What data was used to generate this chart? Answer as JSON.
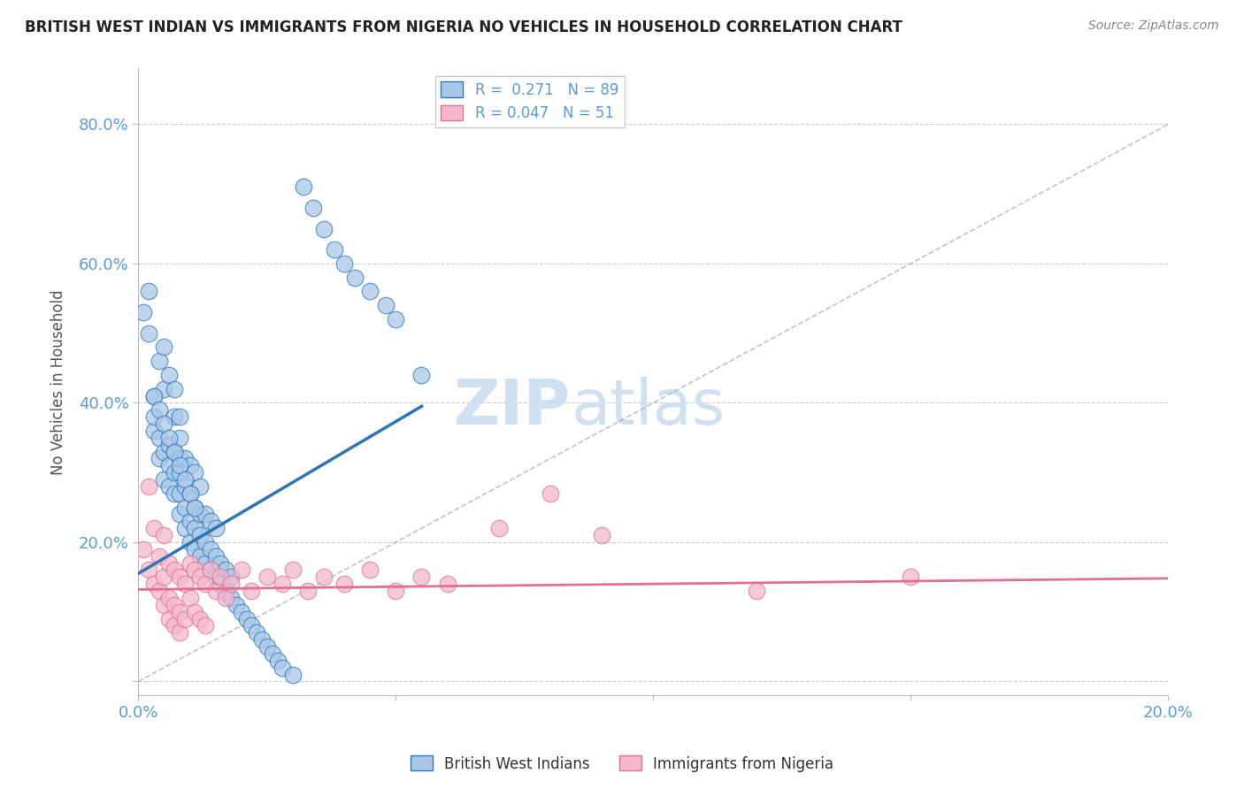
{
  "title": "BRITISH WEST INDIAN VS IMMIGRANTS FROM NIGERIA NO VEHICLES IN HOUSEHOLD CORRELATION CHART",
  "source_text": "Source: ZipAtlas.com",
  "ylabel": "No Vehicles in Household",
  "xlim": [
    0.0,
    0.2
  ],
  "ylim": [
    -0.02,
    0.88
  ],
  "xticks": [
    0.0,
    0.05,
    0.1,
    0.15,
    0.2
  ],
  "xticklabels": [
    "0.0%",
    "",
    "",
    "",
    "20.0%"
  ],
  "yticks": [
    0.0,
    0.2,
    0.4,
    0.6,
    0.8
  ],
  "yticklabels": [
    "",
    "20.0%",
    "40.0%",
    "60.0%",
    "80.0%"
  ],
  "grid_color": "#cccccc",
  "background_color": "#ffffff",
  "axis_color": "#bbbbbb",
  "tick_color": "#5b9bd5",
  "legend_R1": "R =  0.271",
  "legend_N1": "N = 89",
  "legend_R2": "R = 0.047",
  "legend_N2": "N = 51",
  "legend_label1": "British West Indians",
  "legend_label2": "Immigrants from Nigeria",
  "color_blue": "#a8c8e8",
  "color_pink": "#f4b8cc",
  "trend_color_blue": "#2e75b6",
  "trend_color_pink": "#e07090",
  "diag_color": "#aaaaaa",
  "watermark_zip": "ZIP",
  "watermark_atlas": "atlas",
  "watermark_color": "#cfe0f0",
  "blue_scatter_x": [
    0.001,
    0.002,
    0.002,
    0.003,
    0.003,
    0.003,
    0.004,
    0.004,
    0.004,
    0.005,
    0.005,
    0.005,
    0.005,
    0.006,
    0.006,
    0.006,
    0.006,
    0.007,
    0.007,
    0.007,
    0.007,
    0.007,
    0.008,
    0.008,
    0.008,
    0.008,
    0.008,
    0.008,
    0.009,
    0.009,
    0.009,
    0.009,
    0.01,
    0.01,
    0.01,
    0.01,
    0.011,
    0.011,
    0.011,
    0.011,
    0.012,
    0.012,
    0.012,
    0.012,
    0.013,
    0.013,
    0.013,
    0.014,
    0.014,
    0.014,
    0.015,
    0.015,
    0.015,
    0.016,
    0.016,
    0.017,
    0.017,
    0.018,
    0.018,
    0.019,
    0.02,
    0.021,
    0.022,
    0.023,
    0.024,
    0.025,
    0.026,
    0.027,
    0.028,
    0.03,
    0.032,
    0.034,
    0.036,
    0.038,
    0.04,
    0.042,
    0.045,
    0.048,
    0.05,
    0.055,
    0.003,
    0.004,
    0.005,
    0.006,
    0.007,
    0.008,
    0.009,
    0.01,
    0.011
  ],
  "blue_scatter_y": [
    0.53,
    0.5,
    0.56,
    0.36,
    0.38,
    0.41,
    0.32,
    0.35,
    0.46,
    0.29,
    0.33,
    0.42,
    0.48,
    0.28,
    0.31,
    0.34,
    0.44,
    0.27,
    0.3,
    0.33,
    0.38,
    0.42,
    0.24,
    0.27,
    0.3,
    0.32,
    0.35,
    0.38,
    0.22,
    0.25,
    0.28,
    0.32,
    0.2,
    0.23,
    0.27,
    0.31,
    0.19,
    0.22,
    0.25,
    0.3,
    0.18,
    0.21,
    0.24,
    0.28,
    0.17,
    0.2,
    0.24,
    0.16,
    0.19,
    0.23,
    0.15,
    0.18,
    0.22,
    0.14,
    0.17,
    0.13,
    0.16,
    0.12,
    0.15,
    0.11,
    0.1,
    0.09,
    0.08,
    0.07,
    0.06,
    0.05,
    0.04,
    0.03,
    0.02,
    0.01,
    0.71,
    0.68,
    0.65,
    0.62,
    0.6,
    0.58,
    0.56,
    0.54,
    0.52,
    0.44,
    0.41,
    0.39,
    0.37,
    0.35,
    0.33,
    0.31,
    0.29,
    0.27,
    0.25
  ],
  "pink_scatter_x": [
    0.001,
    0.002,
    0.003,
    0.003,
    0.004,
    0.004,
    0.005,
    0.005,
    0.005,
    0.006,
    0.006,
    0.006,
    0.007,
    0.007,
    0.007,
    0.008,
    0.008,
    0.008,
    0.009,
    0.009,
    0.01,
    0.01,
    0.011,
    0.011,
    0.012,
    0.012,
    0.013,
    0.013,
    0.014,
    0.015,
    0.016,
    0.017,
    0.018,
    0.02,
    0.022,
    0.025,
    0.028,
    0.03,
    0.033,
    0.036,
    0.04,
    0.045,
    0.05,
    0.055,
    0.06,
    0.07,
    0.08,
    0.09,
    0.12,
    0.15,
    0.002
  ],
  "pink_scatter_y": [
    0.19,
    0.16,
    0.22,
    0.14,
    0.18,
    0.13,
    0.21,
    0.15,
    0.11,
    0.17,
    0.12,
    0.09,
    0.16,
    0.11,
    0.08,
    0.15,
    0.1,
    0.07,
    0.14,
    0.09,
    0.17,
    0.12,
    0.16,
    0.1,
    0.15,
    0.09,
    0.14,
    0.08,
    0.16,
    0.13,
    0.15,
    0.12,
    0.14,
    0.16,
    0.13,
    0.15,
    0.14,
    0.16,
    0.13,
    0.15,
    0.14,
    0.16,
    0.13,
    0.15,
    0.14,
    0.22,
    0.27,
    0.21,
    0.13,
    0.15,
    0.28
  ],
  "blue_trend_x": [
    0.0,
    0.055
  ],
  "blue_trend_y": [
    0.155,
    0.395
  ],
  "pink_trend_x": [
    0.0,
    0.2
  ],
  "pink_trend_y": [
    0.132,
    0.148
  ]
}
